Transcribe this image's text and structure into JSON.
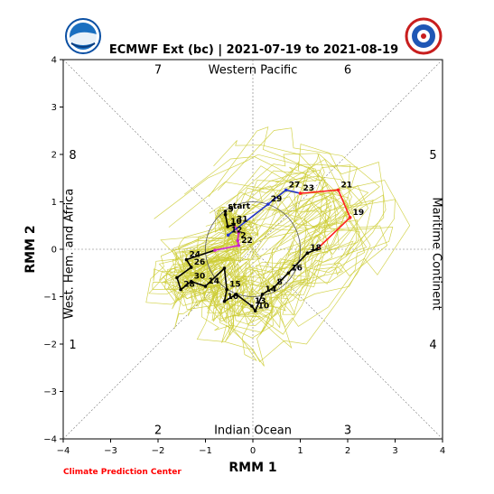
{
  "title": "ECMWF Ext (bc) | 2021-07-19 to 2021-08-19",
  "credit": "Climate Prediction Center",
  "logos": {
    "left": "noaa-logo",
    "right": "nws-logo"
  },
  "chart_data": {
    "type": "line",
    "xlabel": "RMM 1",
    "ylabel": "RMM 2",
    "xlim": [
      -4,
      4
    ],
    "ylim": [
      -4,
      4
    ],
    "xticks": [
      -4,
      -3,
      -2,
      -1,
      0,
      1,
      2,
      3,
      4
    ],
    "yticks": [
      -4,
      -3,
      -2,
      -1,
      0,
      1,
      2,
      3,
      4
    ],
    "unit_circle_radius": 1,
    "phase_labels": [
      {
        "label": "7",
        "x": -2.0,
        "y": 3.8
      },
      {
        "label": "6",
        "x": 2.0,
        "y": 3.8
      },
      {
        "label": "8",
        "x": -3.8,
        "y": 2.0
      },
      {
        "label": "5",
        "x": 3.8,
        "y": 2.0
      },
      {
        "label": "1",
        "x": -3.8,
        "y": -2.0
      },
      {
        "label": "4",
        "x": 3.8,
        "y": -2.0
      },
      {
        "label": "2",
        "x": -2.0,
        "y": -3.8
      },
      {
        "label": "3",
        "x": 2.0,
        "y": -3.8
      }
    ],
    "regions": [
      {
        "label": "Western Pacific",
        "x": 0,
        "y": 3.8,
        "rotate": 0
      },
      {
        "label": "Indian Ocean",
        "x": 0,
        "y": -3.8,
        "rotate": 0
      },
      {
        "label": "West. Hem. and Africa",
        "x": -3.8,
        "y": 0,
        "rotate": -90
      },
      {
        "label": "Maritime Continent",
        "x": 3.8,
        "y": 0,
        "rotate": 90
      }
    ],
    "ensemble_color": "#cccc33",
    "series": [
      {
        "color": "#000000",
        "points": [
          {
            "x": -0.58,
            "y": 0.8,
            "label": "start"
          },
          {
            "x": -0.58,
            "y": 0.73,
            "label": "9"
          },
          {
            "x": -0.53,
            "y": 0.48,
            "label": "10"
          },
          {
            "x": -0.4,
            "y": 0.52,
            "label": "31"
          },
          {
            "x": -0.3,
            "y": 0.35,
            "label": ""
          },
          {
            "x": -0.32,
            "y": 0.18,
            "label": "2"
          },
          {
            "x": -0.3,
            "y": 0.08,
            "label": "22"
          },
          {
            "x": -0.8,
            "y": -0.02,
            "label": ""
          },
          {
            "x": -1.4,
            "y": -0.22,
            "label": "24"
          },
          {
            "x": -1.3,
            "y": -0.38,
            "label": "26"
          },
          {
            "x": -1.6,
            "y": -0.6,
            "label": ""
          },
          {
            "x": -1.52,
            "y": -0.85,
            "label": "28"
          },
          {
            "x": -1.3,
            "y": -0.68,
            "label": "30"
          },
          {
            "x": -1.0,
            "y": -0.78,
            "label": "14"
          },
          {
            "x": -0.6,
            "y": -0.4,
            "label": ""
          },
          {
            "x": -0.55,
            "y": -0.85,
            "label": "15"
          },
          {
            "x": -0.6,
            "y": -1.1,
            "label": "16"
          },
          {
            "x": -0.35,
            "y": -0.95,
            "label": ""
          },
          {
            "x": -0.02,
            "y": -1.2,
            "label": "13"
          },
          {
            "x": 0.05,
            "y": -1.3,
            "label": "10"
          },
          {
            "x": 0.2,
            "y": -0.95,
            "label": "14"
          },
          {
            "x": 0.45,
            "y": -0.8,
            "label": "8"
          },
          {
            "x": 0.75,
            "y": -0.5,
            "label": "16"
          },
          {
            "x": 1.15,
            "y": -0.08,
            "label": "18"
          },
          {
            "x": 1.35,
            "y": 0.0,
            "label": ""
          },
          {
            "x": 2.05,
            "y": 0.67,
            "label": "19"
          },
          {
            "x": 1.8,
            "y": 1.25,
            "label": "21"
          },
          {
            "x": 1.0,
            "y": 1.18,
            "label": "23"
          },
          {
            "x": 0.7,
            "y": 1.25,
            "label": "27"
          },
          {
            "x": 0.32,
            "y": 0.95,
            "label": "29"
          },
          {
            "x": -0.52,
            "y": 0.3,
            "label": "12"
          }
        ]
      }
    ]
  }
}
